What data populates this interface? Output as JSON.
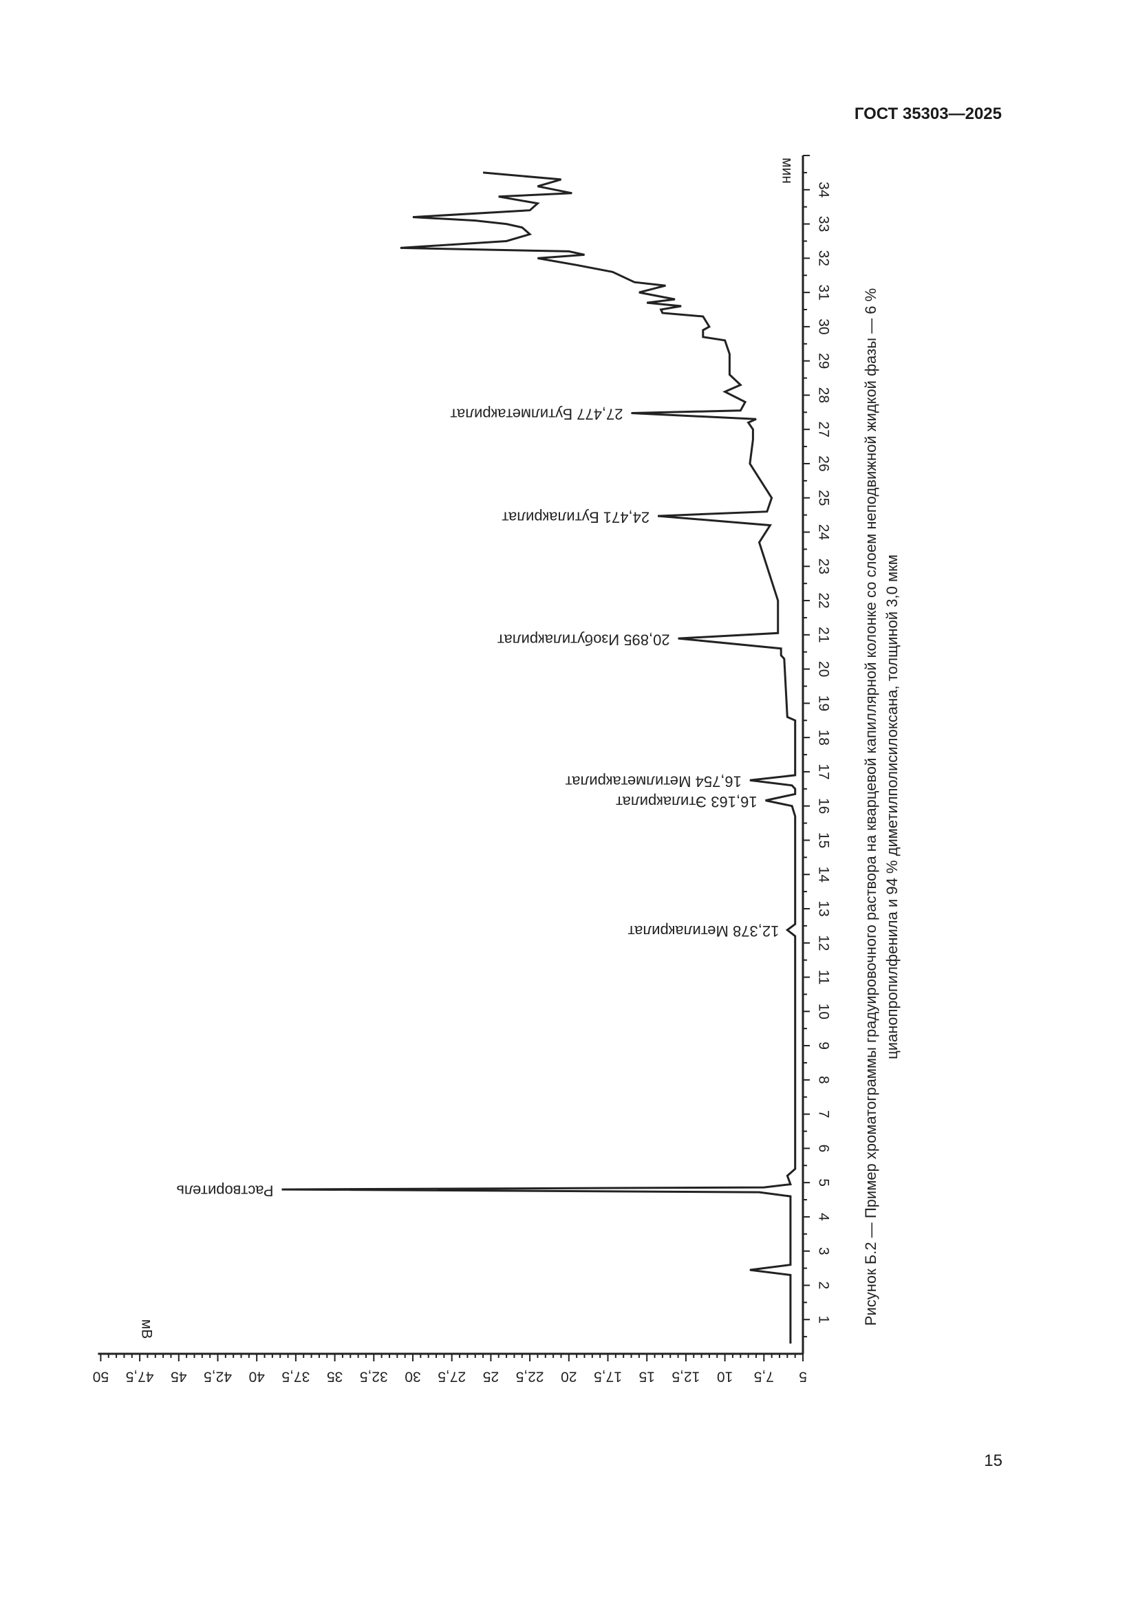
{
  "header": {
    "standard": "ГОСТ 35303—2025"
  },
  "footer": {
    "page_number": "15"
  },
  "figure": {
    "caption_line1": "Рисунок Б.2 — Пример хроматограммы градуировочного раствора на кварцевой капиллярной колонке со слоем неподвижной жидкой фазы — 6 %",
    "caption_line2": "цианопропилфенила и 94 % диметилполисилоксана, толщиной 3,0 мкм"
  },
  "chart_data": {
    "type": "line",
    "orientation": "rotated 90° (retention time axis vertical, signal axis horizontal)",
    "xlabel": "мин",
    "ylabel": "мВ",
    "xlim": [
      0,
      35
    ],
    "ylim": [
      5,
      50
    ],
    "x_ticks": [
      1,
      2,
      3,
      4,
      5,
      6,
      7,
      8,
      9,
      10,
      11,
      12,
      13,
      14,
      15,
      16,
      17,
      18,
      19,
      20,
      21,
      22,
      23,
      24,
      25,
      26,
      27,
      28,
      29,
      30,
      31,
      32,
      33,
      34
    ],
    "y_ticks": [
      "5",
      "7,5",
      "10",
      "12,5",
      "15",
      "17,5",
      "20",
      "22,5",
      "25",
      "27,5",
      "30",
      "32,5",
      "35",
      "37,5",
      "40",
      "42,5",
      "45",
      "47,5",
      "50"
    ],
    "y_tick_values": [
      5,
      7.5,
      10,
      12.5,
      15,
      17.5,
      20,
      22.5,
      25,
      27.5,
      30,
      32.5,
      35,
      37.5,
      40,
      42.5,
      45,
      47.5,
      50
    ],
    "series": [
      {
        "points": [
          [
            0.3,
            5.8
          ],
          [
            2.3,
            5.8
          ],
          [
            2.45,
            8.4
          ],
          [
            2.6,
            5.8
          ],
          [
            4.6,
            5.8
          ],
          [
            4.72,
            7.8
          ],
          [
            4.8,
            38.4
          ],
          [
            4.86,
            7.5
          ],
          [
            4.95,
            5.8
          ],
          [
            5.2,
            6.0
          ],
          [
            5.4,
            5.5
          ],
          [
            6.0,
            5.5
          ],
          [
            12.2,
            5.5
          ],
          [
            12.378,
            6.0
          ],
          [
            12.55,
            5.5
          ],
          [
            15.7,
            5.5
          ],
          [
            16.0,
            5.7
          ],
          [
            16.163,
            7.4
          ],
          [
            16.35,
            5.5
          ],
          [
            16.5,
            5.5
          ],
          [
            16.6,
            5.7
          ],
          [
            16.754,
            8.4
          ],
          [
            16.9,
            5.5
          ],
          [
            18.5,
            5.5
          ],
          [
            18.6,
            6.0
          ],
          [
            20.3,
            6.2
          ],
          [
            20.4,
            6.4
          ],
          [
            20.6,
            6.4
          ],
          [
            20.895,
            13.0
          ],
          [
            21.05,
            6.6
          ],
          [
            22.0,
            6.6
          ],
          [
            23.7,
            7.8
          ],
          [
            24.2,
            7.1
          ],
          [
            24.471,
            14.3
          ],
          [
            24.6,
            7.3
          ],
          [
            25.0,
            7.0
          ],
          [
            26.0,
            8.4
          ],
          [
            26.7,
            8.2
          ],
          [
            27.0,
            8.2
          ],
          [
            27.2,
            8.5
          ],
          [
            27.3,
            8.0
          ],
          [
            27.477,
            16.0
          ],
          [
            27.55,
            9.0
          ],
          [
            27.8,
            8.7
          ],
          [
            28.1,
            10.0
          ],
          [
            28.3,
            9.0
          ],
          [
            28.6,
            9.7
          ],
          [
            29.2,
            9.7
          ],
          [
            29.6,
            10.0
          ],
          [
            29.7,
            11.4
          ],
          [
            29.9,
            11.4
          ],
          [
            30.0,
            11.0
          ],
          [
            30.3,
            11.4
          ],
          [
            30.4,
            14.0
          ],
          [
            30.5,
            14.1
          ],
          [
            30.6,
            12.8
          ],
          [
            30.7,
            15.0
          ],
          [
            30.8,
            13.2
          ],
          [
            31.0,
            15.5
          ],
          [
            31.2,
            13.8
          ],
          [
            31.3,
            15.8
          ],
          [
            31.6,
            17.2
          ],
          [
            31.8,
            19.5
          ],
          [
            32.0,
            22.0
          ],
          [
            32.1,
            19.0
          ],
          [
            32.2,
            20.0
          ],
          [
            32.3,
            30.8
          ],
          [
            32.5,
            24.0
          ],
          [
            32.7,
            22.5
          ],
          [
            32.9,
            23.0
          ],
          [
            33.0,
            24.0
          ],
          [
            33.1,
            26.0
          ],
          [
            33.2,
            30.0
          ],
          [
            33.4,
            22.5
          ],
          [
            33.6,
            22.0
          ],
          [
            33.8,
            24.5
          ],
          [
            33.9,
            19.8
          ],
          [
            34.1,
            22.0
          ],
          [
            34.3,
            20.5
          ],
          [
            34.5,
            25.5
          ]
        ]
      }
    ],
    "peaks": [
      {
        "time": 4.8,
        "label": "Растворитель"
      },
      {
        "time": 12.378,
        "label": "12,378 Метилакрилат"
      },
      {
        "time": 16.163,
        "label": "16,163 Этилакрилат"
      },
      {
        "time": 16.754,
        "label": "16,754 Метилметакрилат"
      },
      {
        "time": 20.895,
        "label": "20,895 Изобутилакрилат"
      },
      {
        "time": 24.471,
        "label": "24,471 Бутилакрилат"
      },
      {
        "time": 27.477,
        "label": "27,477 Бутилметакрилат"
      }
    ]
  }
}
